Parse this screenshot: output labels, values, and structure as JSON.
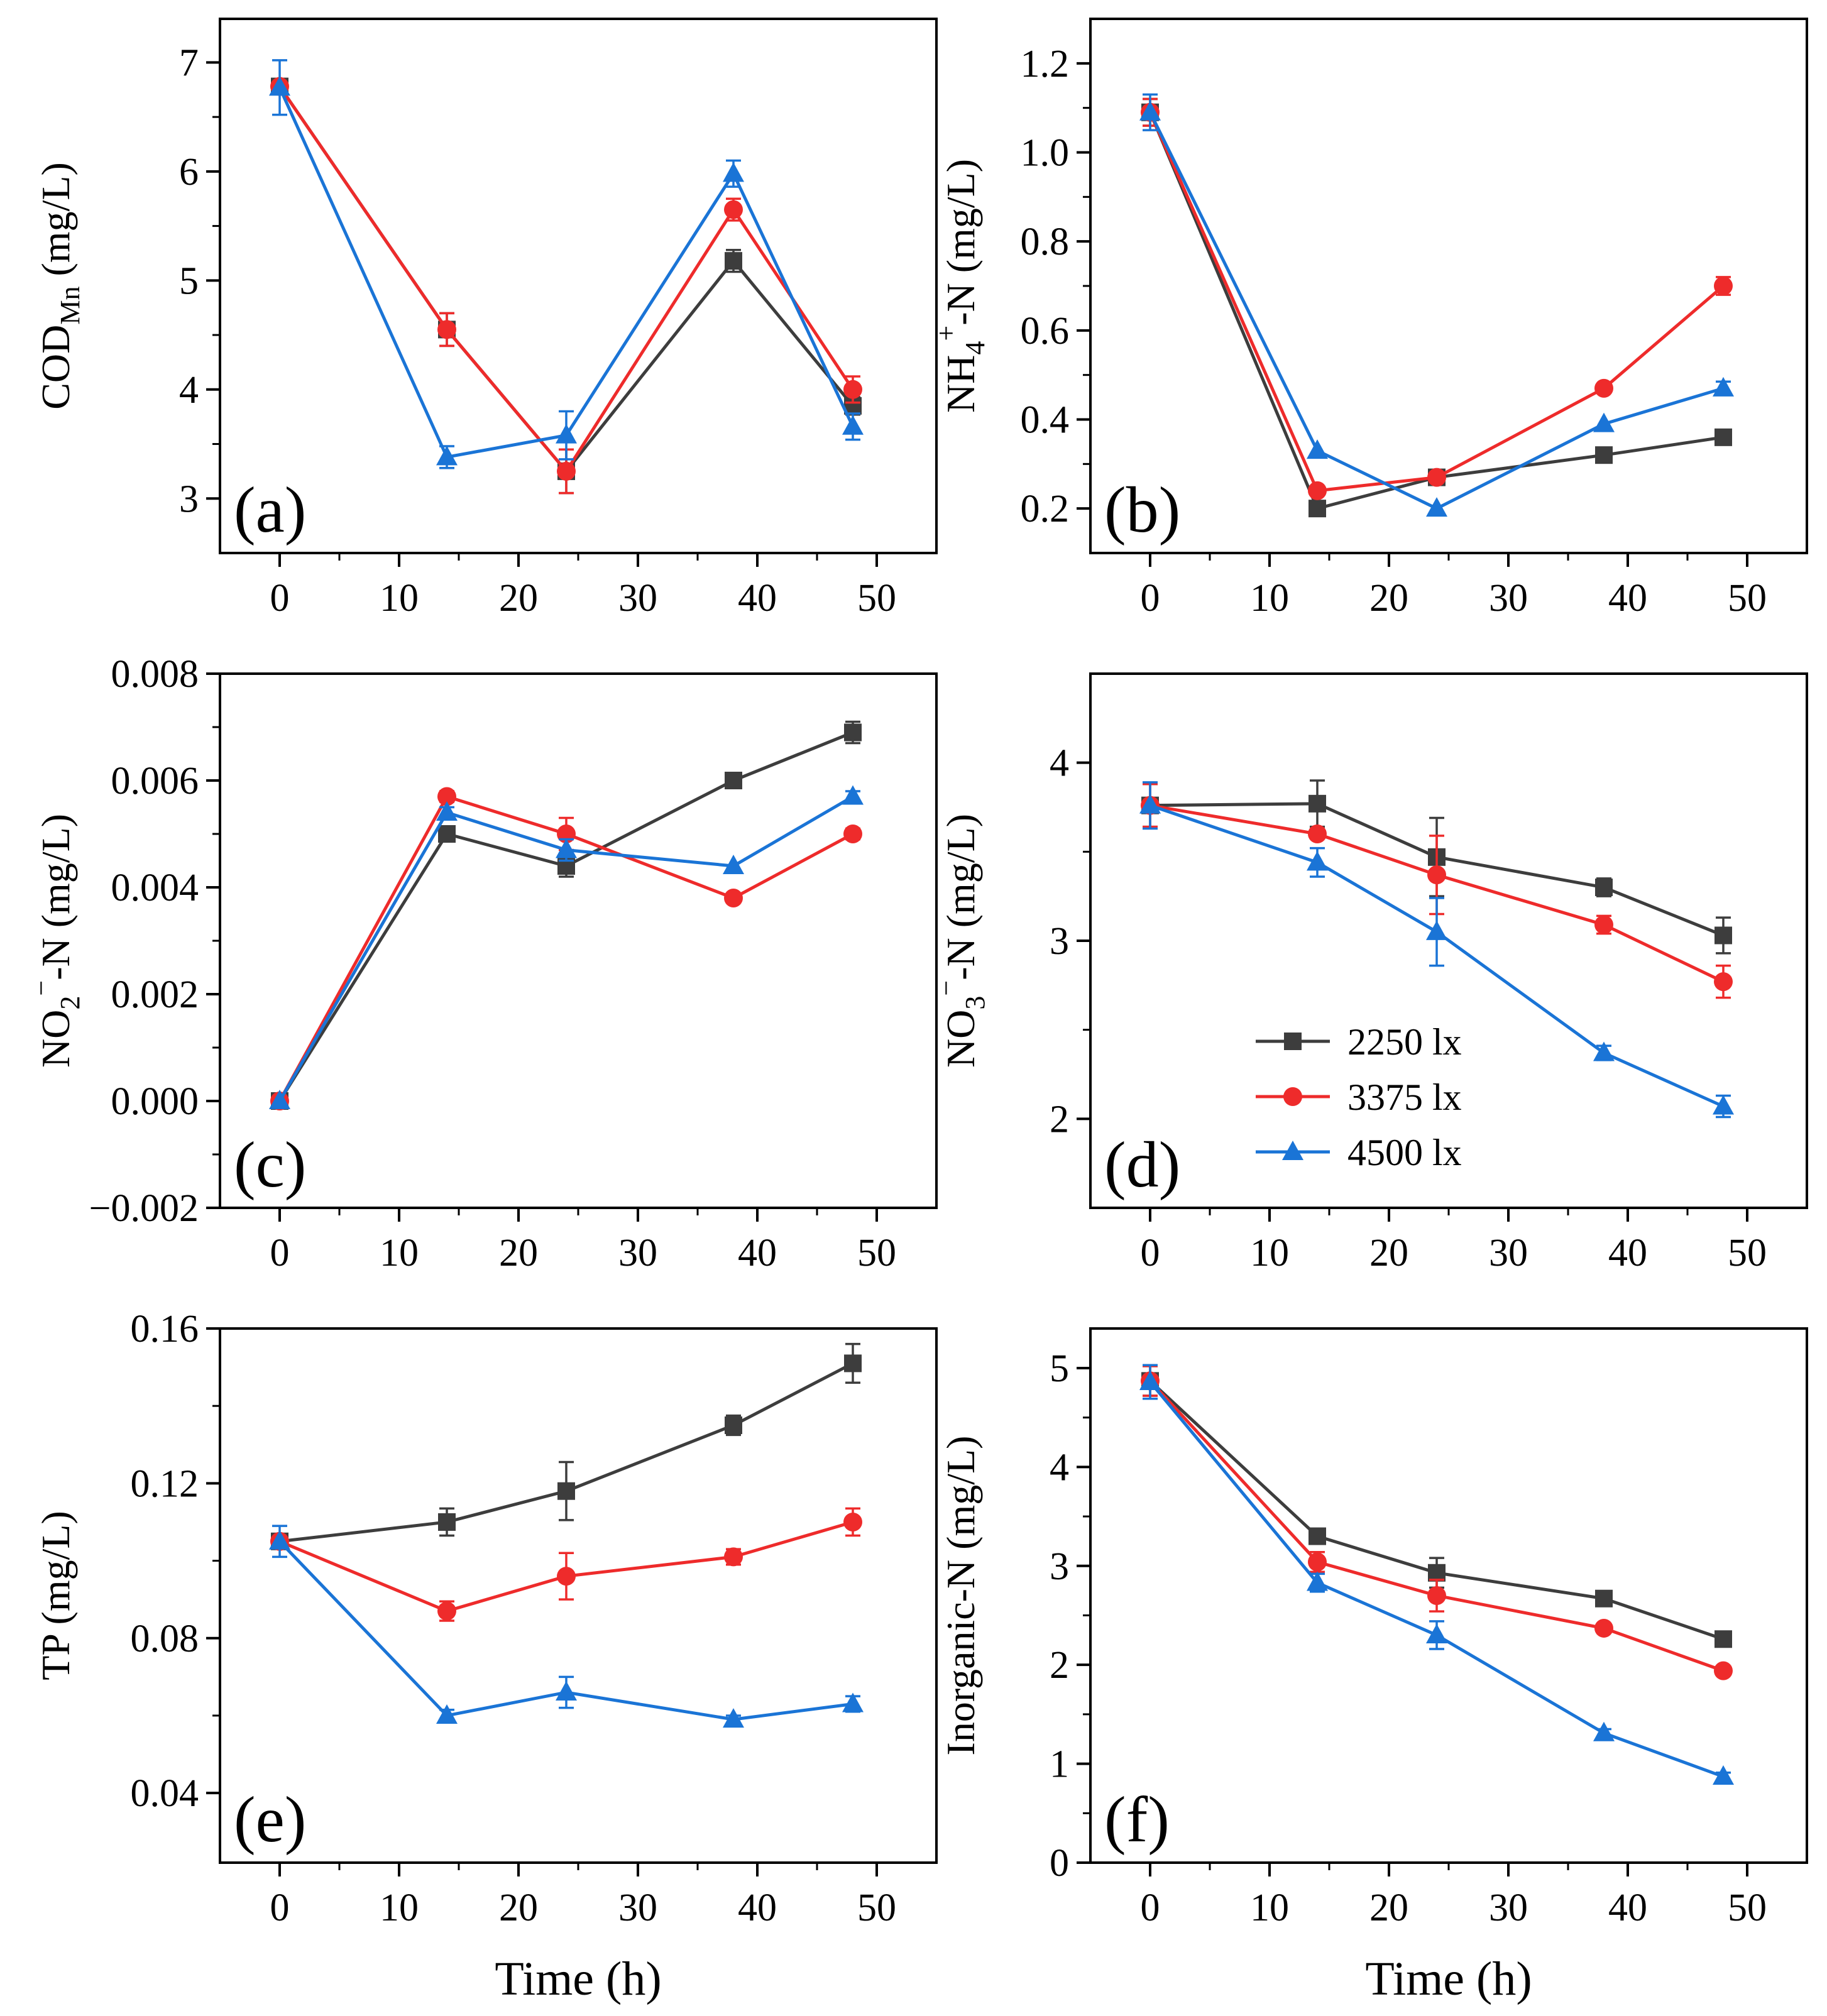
{
  "colors": {
    "2250": "#3d3d3d",
    "3375": "#ee2b2b",
    "4500": "#1a74d6",
    "axis": "#000000"
  },
  "common_xlabel": "Time (h)",
  "legend": [
    {
      "label": "2250 lx",
      "marker": "square",
      "color": "#3d3d3d"
    },
    {
      "label": "3375 lx",
      "marker": "circle",
      "color": "#ee2b2b"
    },
    {
      "label": "4500 lx",
      "marker": "triangle",
      "color": "#1a74d6"
    }
  ],
  "chart_data": [
    {
      "type": "line",
      "panel": "(a)",
      "ylabel": {
        "main": "COD",
        "sub": "Mn",
        "rest": " (mg/L)"
      },
      "xlabel": "",
      "x": [
        0,
        14,
        24,
        38,
        48
      ],
      "xlim": [
        -5,
        55
      ],
      "xticks": [
        0,
        10,
        20,
        30,
        40,
        50
      ],
      "ylim": [
        2.5,
        7.4
      ],
      "yticks": [
        3,
        4,
        5,
        6,
        7
      ],
      "ytick_labels": [
        "3",
        "4",
        "5",
        "6",
        "7"
      ],
      "series": [
        {
          "name": "2250 lx",
          "values": [
            6.78,
            4.55,
            3.25,
            5.18,
            3.85
          ],
          "errors": [
            0.0,
            0.15,
            0.2,
            0.1,
            0.08
          ]
        },
        {
          "name": "3375 lx",
          "values": [
            6.78,
            4.55,
            3.25,
            5.65,
            4.0
          ],
          "errors": [
            0.0,
            0.15,
            0.2,
            0.1,
            0.12
          ]
        },
        {
          "name": "4500 lx",
          "values": [
            6.77,
            3.38,
            3.58,
            5.98,
            3.66
          ],
          "errors": [
            0.25,
            0.1,
            0.22,
            0.12,
            0.12
          ]
        }
      ]
    },
    {
      "type": "line",
      "panel": "(b)",
      "ylabel": {
        "main": "NH",
        "sub": "4",
        "sup": "+",
        "rest": "-N (mg/L)"
      },
      "xlabel": "",
      "x": [
        0,
        14,
        24,
        38,
        48
      ],
      "xlim": [
        -5,
        55
      ],
      "xticks": [
        0,
        10,
        20,
        30,
        40,
        50
      ],
      "ylim": [
        0.1,
        1.3
      ],
      "yticks": [
        0.2,
        0.4,
        0.6,
        0.8,
        1.0,
        1.2
      ],
      "ytick_labels": [
        "0.2",
        "0.4",
        "0.6",
        "0.8",
        "1.0",
        "1.2"
      ],
      "series": [
        {
          "name": "2250 lx",
          "values": [
            1.09,
            0.2,
            0.27,
            0.32,
            0.36
          ],
          "errors": [
            0.03,
            0.0,
            0.0,
            0.0,
            0.0
          ]
        },
        {
          "name": "3375 lx",
          "values": [
            1.09,
            0.24,
            0.27,
            0.47,
            0.7
          ],
          "errors": [
            0.03,
            0.0,
            0.0,
            0.0,
            0.02
          ]
        },
        {
          "name": "4500 lx",
          "values": [
            1.09,
            0.33,
            0.2,
            0.39,
            0.47
          ],
          "errors": [
            0.04,
            0.0,
            0.0,
            0.0,
            0.015
          ]
        }
      ]
    },
    {
      "type": "line",
      "panel": "(c)",
      "ylabel": {
        "main": "NO",
        "sub": "2",
        "sup": "−",
        "rest": "-N (mg/L)"
      },
      "xlabel": "",
      "x": [
        0,
        14,
        24,
        38,
        48
      ],
      "xlim": [
        -5,
        55
      ],
      "xticks": [
        0,
        10,
        20,
        30,
        40,
        50
      ],
      "ylim": [
        -0.002,
        0.008
      ],
      "yticks": [
        -0.002,
        0.0,
        0.002,
        0.004,
        0.006,
        0.008
      ],
      "ytick_labels": [
        "−0.002",
        "0.000",
        "0.002",
        "0.004",
        "0.006",
        "0.008"
      ],
      "series": [
        {
          "name": "2250 lx",
          "values": [
            0.0,
            0.005,
            0.0044,
            0.006,
            0.0069
          ],
          "errors": [
            0.0,
            0.0001,
            0.0002,
            0.0,
            0.0002
          ]
        },
        {
          "name": "3375 lx",
          "values": [
            0.0,
            0.0057,
            0.005,
            0.0038,
            0.005
          ],
          "errors": [
            0.0,
            0.0001,
            0.0003,
            0.0,
            0.0001
          ]
        },
        {
          "name": "4500 lx",
          "values": [
            0.0,
            0.0054,
            0.0047,
            0.0044,
            0.0057
          ],
          "errors": [
            0.0,
            0.0001,
            0.0002,
            0.0,
            0.0001
          ]
        }
      ]
    },
    {
      "type": "line",
      "panel": "(d)",
      "ylabel": {
        "main": "NO",
        "sub": "3",
        "sup": "−",
        "rest": "-N (mg/L)"
      },
      "xlabel": "",
      "x": [
        0,
        14,
        24,
        38,
        48
      ],
      "xlim": [
        -5,
        55
      ],
      "xticks": [
        0,
        10,
        20,
        30,
        40,
        50
      ],
      "ylim": [
        1.5,
        4.5
      ],
      "yticks": [
        2,
        3,
        4
      ],
      "ytick_labels": [
        "2",
        "3",
        "4"
      ],
      "legend_position": "lower-right",
      "series": [
        {
          "name": "2250 lx",
          "values": [
            3.76,
            3.77,
            3.47,
            3.3,
            3.03
          ],
          "errors": [
            0.12,
            0.13,
            0.22,
            0.05,
            0.1
          ]
        },
        {
          "name": "3375 lx",
          "values": [
            3.76,
            3.6,
            3.37,
            3.09,
            2.77
          ],
          "errors": [
            0.12,
            0.0,
            0.22,
            0.05,
            0.09
          ]
        },
        {
          "name": "4500 lx",
          "values": [
            3.76,
            3.44,
            3.05,
            2.37,
            2.07
          ],
          "errors": [
            0.13,
            0.08,
            0.19,
            0.04,
            0.06
          ]
        }
      ]
    },
    {
      "type": "line",
      "panel": "(e)",
      "ylabel": {
        "main": "TP (mg/L)"
      },
      "xlabel": "Time (h)",
      "x": [
        0,
        14,
        24,
        38,
        48
      ],
      "xlim": [
        -5,
        55
      ],
      "xticks": [
        0,
        10,
        20,
        30,
        40,
        50
      ],
      "ylim": [
        0.022,
        0.16
      ],
      "yticks": [
        0.04,
        0.08,
        0.12,
        0.16
      ],
      "ytick_labels": [
        "0.04",
        "0.08",
        "0.12",
        "0.16"
      ],
      "series": [
        {
          "name": "2250 lx",
          "values": [
            0.105,
            0.11,
            0.118,
            0.135,
            0.151
          ],
          "errors": [
            0.0,
            0.0035,
            0.0075,
            0.0025,
            0.005
          ]
        },
        {
          "name": "3375 lx",
          "values": [
            0.105,
            0.087,
            0.096,
            0.101,
            0.11
          ],
          "errors": [
            0.0,
            0.0025,
            0.006,
            0.002,
            0.0035
          ]
        },
        {
          "name": "4500 lx",
          "values": [
            0.105,
            0.06,
            0.066,
            0.059,
            0.063
          ],
          "errors": [
            0.004,
            0.0015,
            0.004,
            0.001,
            0.002
          ]
        }
      ]
    },
    {
      "type": "line",
      "panel": "(f)",
      "ylabel": {
        "main": "Inorganic-N (mg/L)"
      },
      "xlabel": "Time (h)",
      "x": [
        0,
        14,
        24,
        38,
        48
      ],
      "xlim": [
        -5,
        55
      ],
      "xticks": [
        0,
        10,
        20,
        30,
        40,
        50
      ],
      "ylim": [
        0,
        5.4
      ],
      "yticks": [
        0,
        1,
        2,
        3,
        4,
        5
      ],
      "ytick_labels": [
        "0",
        "1",
        "2",
        "3",
        "4",
        "5"
      ],
      "series": [
        {
          "name": "2250 lx",
          "values": [
            4.87,
            3.3,
            2.93,
            2.67,
            2.26
          ],
          "errors": [
            0.15,
            0.06,
            0.15,
            0.04,
            0.04
          ]
        },
        {
          "name": "3375 lx",
          "values": [
            4.87,
            3.04,
            2.7,
            2.37,
            1.94
          ],
          "errors": [
            0.15,
            0.1,
            0.16,
            0.04,
            0.04
          ]
        },
        {
          "name": "4500 lx",
          "values": [
            4.86,
            2.83,
            2.3,
            1.31,
            0.87
          ],
          "errors": [
            0.17,
            0.09,
            0.14,
            0.04,
            0.04
          ]
        }
      ]
    }
  ]
}
